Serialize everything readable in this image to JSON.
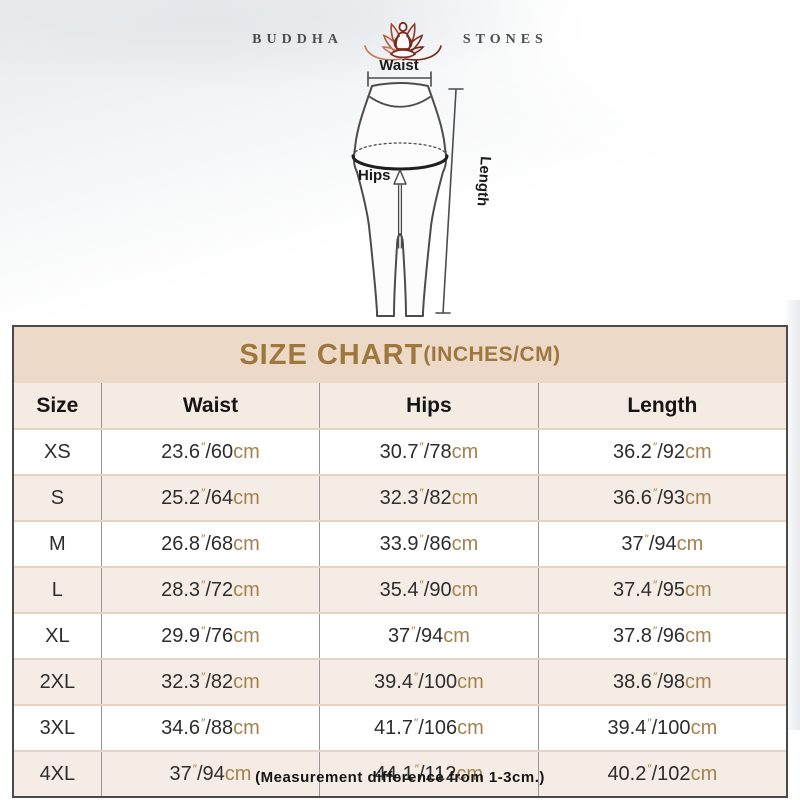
{
  "brand": {
    "name_left": "BUDDHA",
    "name_right": "STONES"
  },
  "diagram": {
    "waist_label": "Waist",
    "hips_label": "Hips",
    "length_label": "Length"
  },
  "size_chart": {
    "title": "SIZE CHART",
    "title_suffix": "(INCHES/CM)",
    "columns": [
      "Size",
      "Waist",
      "Hips",
      "Length"
    ],
    "units": {
      "inch_mark": "″",
      "separator": "/",
      "cm_suffix": "cm"
    },
    "rows": [
      {
        "size": "XS",
        "waist": {
          "in": "23.6",
          "cm": "60"
        },
        "hips": {
          "in": "30.7",
          "cm": "78"
        },
        "length": {
          "in": "36.2",
          "cm": "92"
        }
      },
      {
        "size": "S",
        "waist": {
          "in": "25.2",
          "cm": "64"
        },
        "hips": {
          "in": "32.3",
          "cm": "82"
        },
        "length": {
          "in": "36.6",
          "cm": "93"
        }
      },
      {
        "size": "M",
        "waist": {
          "in": "26.8",
          "cm": "68"
        },
        "hips": {
          "in": "33.9",
          "cm": "86"
        },
        "length": {
          "in": "37",
          "cm": "94"
        }
      },
      {
        "size": "L",
        "waist": {
          "in": "28.3",
          "cm": "72"
        },
        "hips": {
          "in": "35.4",
          "cm": "90"
        },
        "length": {
          "in": "37.4",
          "cm": "95"
        }
      },
      {
        "size": "XL",
        "waist": {
          "in": "29.9",
          "cm": "76"
        },
        "hips": {
          "in": "37",
          "cm": "94"
        },
        "length": {
          "in": "37.8",
          "cm": "96"
        }
      },
      {
        "size": "2XL",
        "waist": {
          "in": "32.3",
          "cm": "82"
        },
        "hips": {
          "in": "39.4",
          "cm": "100"
        },
        "length": {
          "in": "38.6",
          "cm": "98"
        }
      },
      {
        "size": "3XL",
        "waist": {
          "in": "34.6",
          "cm": "88"
        },
        "hips": {
          "in": "41.7",
          "cm": "106"
        },
        "length": {
          "in": "39.4",
          "cm": "100"
        }
      },
      {
        "size": "4XL",
        "waist": {
          "in": "37",
          "cm": "94"
        },
        "hips": {
          "in": "44.1",
          "cm": "112"
        },
        "length": {
          "in": "40.2",
          "cm": "102"
        }
      }
    ]
  },
  "footnote": "(Measurement difference from 1-3cm.)",
  "colors": {
    "title-text": "#9e773c",
    "beige-title": "#ecd9c8",
    "beige-head": "#f4ebe2",
    "beige-tint": "#f5ede5",
    "row-divider": "#e8d3c0",
    "vline": "#979797",
    "outer-border": "#4a4a4a",
    "unit-text": "#a5814e",
    "number-text": "#2d2d2d",
    "lotus-dark": "#7a2c1c",
    "lotus-light": "#c4785a"
  }
}
